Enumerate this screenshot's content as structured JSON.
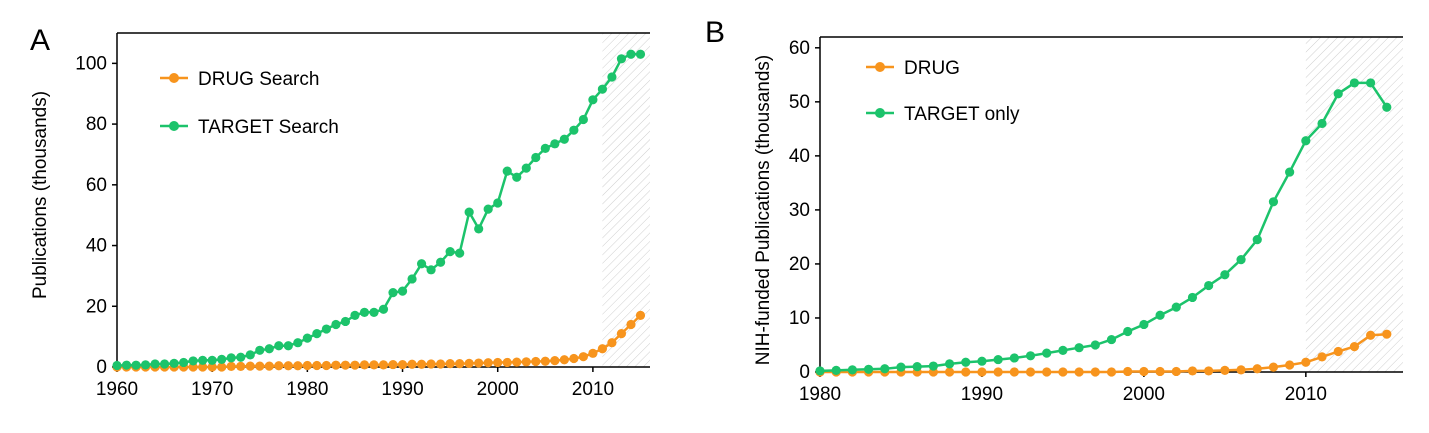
{
  "chart_data": [
    {
      "type": "line",
      "panel_label": "A",
      "title": "",
      "xlabel": "",
      "ylabel": "Publications (thousands)",
      "xlim": [
        1960,
        2016
      ],
      "ylim": [
        0,
        110
      ],
      "xticks": [
        1960,
        1970,
        1980,
        1990,
        2000,
        2010
      ],
      "yticks": [
        0,
        20,
        40,
        60,
        80,
        100
      ],
      "shaded_region": [
        2011,
        2016
      ],
      "legend_position": "top-left",
      "series": [
        {
          "name": "DRUG Search",
          "color": "#F7941D",
          "x": [
            1960,
            1961,
            1962,
            1963,
            1964,
            1965,
            1966,
            1967,
            1968,
            1969,
            1970,
            1971,
            1972,
            1973,
            1974,
            1975,
            1976,
            1977,
            1978,
            1979,
            1980,
            1981,
            1982,
            1983,
            1984,
            1985,
            1986,
            1987,
            1988,
            1989,
            1990,
            1991,
            1992,
            1993,
            1994,
            1995,
            1996,
            1997,
            1998,
            1999,
            2000,
            2001,
            2002,
            2003,
            2004,
            2005,
            2006,
            2007,
            2008,
            2009,
            2010,
            2011,
            2012,
            2013,
            2014,
            2015
          ],
          "values": [
            0,
            0,
            0,
            0,
            0,
            0,
            0,
            0,
            0,
            0,
            0,
            0,
            0.2,
            0.2,
            0.3,
            0.3,
            0.3,
            0.4,
            0.4,
            0.4,
            0.5,
            0.5,
            0.5,
            0.6,
            0.6,
            0.6,
            0.7,
            0.7,
            0.7,
            0.8,
            0.8,
            0.9,
            0.9,
            1.0,
            1.0,
            1.1,
            1.1,
            1.2,
            1.3,
            1.4,
            1.5,
            1.5,
            1.6,
            1.7,
            1.8,
            1.9,
            2.1,
            2.4,
            2.8,
            3.4,
            4.5,
            6.0,
            8.0,
            11.0,
            14.0,
            17.0
          ]
        },
        {
          "name": "TARGET Search",
          "color": "#1CC36B",
          "x": [
            1960,
            1961,
            1962,
            1963,
            1964,
            1965,
            1966,
            1967,
            1968,
            1969,
            1970,
            1971,
            1972,
            1973,
            1974,
            1975,
            1976,
            1977,
            1978,
            1979,
            1980,
            1981,
            1982,
            1983,
            1984,
            1985,
            1986,
            1987,
            1988,
            1989,
            1990,
            1991,
            1992,
            1993,
            1994,
            1995,
            1996,
            1997,
            1998,
            1999,
            2000,
            2001,
            2002,
            2003,
            2004,
            2005,
            2006,
            2007,
            2008,
            2009,
            2010,
            2011,
            2012,
            2013,
            2014,
            2015
          ],
          "values": [
            0.5,
            0.6,
            0.6,
            0.7,
            1.0,
            1.0,
            1.2,
            1.5,
            2.0,
            2.2,
            2.2,
            2.5,
            3.0,
            3.2,
            4.0,
            5.5,
            6.0,
            7.0,
            7.0,
            8.0,
            9.5,
            11.0,
            12.5,
            14.0,
            15.0,
            17.0,
            18.0,
            18.0,
            19.0,
            24.5,
            25.0,
            29.0,
            34.0,
            32.0,
            34.5,
            38.0,
            37.5,
            51.0,
            45.5,
            52.0,
            54.0,
            64.5,
            62.5,
            65.5,
            69.0,
            72.0,
            73.5,
            75.0,
            78.0,
            81.5,
            88.0,
            91.5,
            95.5,
            101.5,
            103.0,
            103.0
          ]
        }
      ]
    },
    {
      "type": "line",
      "panel_label": "B",
      "title": "",
      "xlabel": "",
      "ylabel": "NIH-funded Publications (thousands)",
      "xlim": [
        1980,
        2016
      ],
      "ylim": [
        0,
        62
      ],
      "xticks": [
        1980,
        1990,
        2000,
        2010
      ],
      "yticks": [
        0,
        10,
        20,
        30,
        40,
        50,
        60
      ],
      "shaded_region": [
        2010,
        2016
      ],
      "legend_position": "top-left",
      "series": [
        {
          "name": "DRUG",
          "color": "#F7941D",
          "x": [
            1980,
            1981,
            1982,
            1983,
            1984,
            1985,
            1986,
            1987,
            1988,
            1989,
            1990,
            1991,
            1992,
            1993,
            1994,
            1995,
            1996,
            1997,
            1998,
            1999,
            2000,
            2001,
            2002,
            2003,
            2004,
            2005,
            2006,
            2007,
            2008,
            2009,
            2010,
            2011,
            2012,
            2013,
            2014,
            2015
          ],
          "values": [
            0,
            0,
            0,
            0,
            0,
            0,
            0,
            0,
            0,
            0,
            0,
            0,
            0,
            0,
            0,
            0,
            0,
            0,
            0,
            0.1,
            0.1,
            0.1,
            0.1,
            0.2,
            0.2,
            0.3,
            0.4,
            0.6,
            0.9,
            1.3,
            1.8,
            2.8,
            3.8,
            4.7,
            6.8,
            7.0
          ]
        },
        {
          "name": "TARGET only",
          "color": "#1CC36B",
          "x": [
            1980,
            1981,
            1982,
            1983,
            1984,
            1985,
            1986,
            1987,
            1988,
            1989,
            1990,
            1991,
            1992,
            1993,
            1994,
            1995,
            1996,
            1997,
            1998,
            1999,
            2000,
            2001,
            2002,
            2003,
            2004,
            2005,
            2006,
            2007,
            2008,
            2009,
            2010,
            2011,
            2012,
            2013,
            2014,
            2015
          ],
          "values": [
            0.2,
            0.3,
            0.4,
            0.5,
            0.6,
            0.9,
            1.0,
            1.1,
            1.5,
            1.8,
            2.0,
            2.3,
            2.6,
            3.0,
            3.5,
            4.0,
            4.5,
            5.0,
            6.0,
            7.5,
            8.8,
            10.5,
            12.0,
            13.8,
            16.0,
            18.0,
            20.8,
            24.5,
            31.5,
            37.0,
            42.8,
            46.0,
            51.5,
            53.5,
            53.5,
            49.0
          ]
        }
      ]
    }
  ]
}
